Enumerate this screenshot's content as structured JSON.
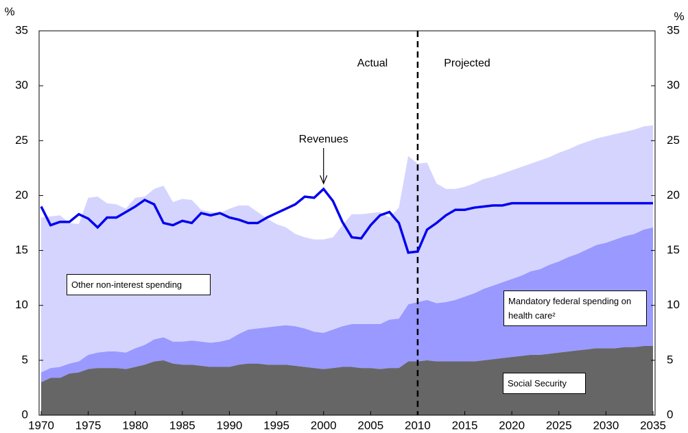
{
  "chart_data": {
    "type": "area",
    "stacked": true,
    "y_label": "%",
    "y2_label": "%",
    "annotations": {
      "actual": "Actual",
      "projected": "Projected"
    },
    "divider_x": 2010,
    "x": [
      1970,
      1971,
      1972,
      1973,
      1974,
      1975,
      1976,
      1977,
      1978,
      1979,
      1980,
      1981,
      1982,
      1983,
      1984,
      1985,
      1986,
      1987,
      1988,
      1989,
      1990,
      1991,
      1992,
      1993,
      1994,
      1995,
      1996,
      1997,
      1998,
      1999,
      2000,
      2001,
      2002,
      2003,
      2004,
      2005,
      2006,
      2007,
      2008,
      2009,
      2010,
      2011,
      2012,
      2013,
      2014,
      2015,
      2016,
      2017,
      2018,
      2019,
      2020,
      2021,
      2022,
      2023,
      2024,
      2025,
      2026,
      2027,
      2028,
      2029,
      2030,
      2031,
      2032,
      2033,
      2034,
      2035
    ],
    "series": [
      {
        "name": "Social Security",
        "kind": "area",
        "color": "#666666",
        "values": [
          3.0,
          3.4,
          3.4,
          3.8,
          3.9,
          4.2,
          4.3,
          4.3,
          4.3,
          4.2,
          4.4,
          4.6,
          4.9,
          5.0,
          4.7,
          4.6,
          4.6,
          4.5,
          4.4,
          4.4,
          4.4,
          4.6,
          4.7,
          4.7,
          4.6,
          4.6,
          4.6,
          4.5,
          4.4,
          4.3,
          4.2,
          4.3,
          4.4,
          4.4,
          4.3,
          4.3,
          4.2,
          4.3,
          4.3,
          4.9,
          4.9,
          5.0,
          4.9,
          4.9,
          4.9,
          4.9,
          4.9,
          5.0,
          5.1,
          5.2,
          5.3,
          5.4,
          5.5,
          5.5,
          5.6,
          5.7,
          5.8,
          5.9,
          6.0,
          6.1,
          6.1,
          6.1,
          6.2,
          6.2,
          6.3,
          6.3
        ]
      },
      {
        "name": "Mandatory federal spending on health care²",
        "kind": "area",
        "color": "#9999ff",
        "values": [
          0.9,
          0.9,
          1.0,
          0.9,
          1.0,
          1.3,
          1.4,
          1.5,
          1.5,
          1.5,
          1.7,
          1.8,
          2.0,
          2.1,
          2.0,
          2.1,
          2.2,
          2.2,
          2.2,
          2.3,
          2.5,
          2.8,
          3.1,
          3.2,
          3.4,
          3.5,
          3.6,
          3.6,
          3.5,
          3.3,
          3.3,
          3.5,
          3.7,
          3.9,
          4.0,
          4.0,
          4.1,
          4.4,
          4.5,
          5.2,
          5.4,
          5.5,
          5.3,
          5.4,
          5.6,
          5.9,
          6.2,
          6.5,
          6.7,
          6.9,
          7.1,
          7.3,
          7.6,
          7.8,
          8.1,
          8.3,
          8.6,
          8.8,
          9.1,
          9.4,
          9.6,
          9.9,
          10.1,
          10.3,
          10.6,
          10.8
        ]
      },
      {
        "name": "Other non-interest spending",
        "kind": "area",
        "color": "#d4d4ff",
        "values": [
          14.1,
          13.8,
          13.8,
          12.8,
          12.5,
          14.3,
          14.2,
          13.5,
          13.4,
          13.1,
          13.7,
          13.5,
          13.7,
          13.8,
          12.7,
          13.0,
          12.8,
          12.0,
          11.9,
          11.7,
          11.9,
          11.7,
          11.3,
          10.6,
          9.9,
          9.3,
          8.9,
          8.4,
          8.3,
          8.4,
          8.5,
          8.4,
          9.2,
          10.0,
          10.0,
          10.1,
          10.2,
          9.3,
          10.1,
          13.5,
          12.6,
          12.5,
          10.9,
          10.3,
          10.1,
          10.0,
          10.0,
          10.0,
          9.9,
          9.9,
          9.9,
          9.9,
          9.8,
          9.9,
          9.8,
          9.9,
          9.8,
          9.9,
          9.8,
          9.7,
          9.7,
          9.6,
          9.5,
          9.5,
          9.4,
          9.3
        ]
      },
      {
        "name": "Revenues",
        "kind": "line",
        "color": "#0000ee",
        "values": [
          19.0,
          17.3,
          17.6,
          17.6,
          18.3,
          17.9,
          17.1,
          18.0,
          18.0,
          18.5,
          19.0,
          19.6,
          19.2,
          17.5,
          17.3,
          17.7,
          17.5,
          18.4,
          18.2,
          18.4,
          18.0,
          17.8,
          17.5,
          17.5,
          18.0,
          18.4,
          18.8,
          19.2,
          19.9,
          19.8,
          20.6,
          19.5,
          17.6,
          16.2,
          16.1,
          17.3,
          18.2,
          18.5,
          17.5,
          14.8,
          14.9,
          16.9,
          17.5,
          18.2,
          18.7,
          18.7,
          18.9,
          19.0,
          19.1,
          19.1,
          19.3,
          19.3,
          19.3,
          19.3,
          19.3,
          19.3,
          19.3,
          19.3,
          19.3,
          19.3,
          19.3,
          19.3,
          19.3,
          19.3,
          19.3,
          19.3
        ]
      }
    ],
    "xlim": [
      1970,
      2035
    ],
    "xticks": [
      1970,
      1975,
      1980,
      1985,
      1990,
      1995,
      2000,
      2005,
      2010,
      2015,
      2020,
      2025,
      2030,
      2035
    ],
    "ylim": [
      0,
      35
    ],
    "yticks": [
      0,
      5,
      10,
      15,
      20,
      25,
      30,
      35
    ],
    "y2lim": [
      0,
      35
    ],
    "y2ticks": [
      0,
      5,
      10,
      15,
      20,
      25,
      30,
      35
    ]
  }
}
